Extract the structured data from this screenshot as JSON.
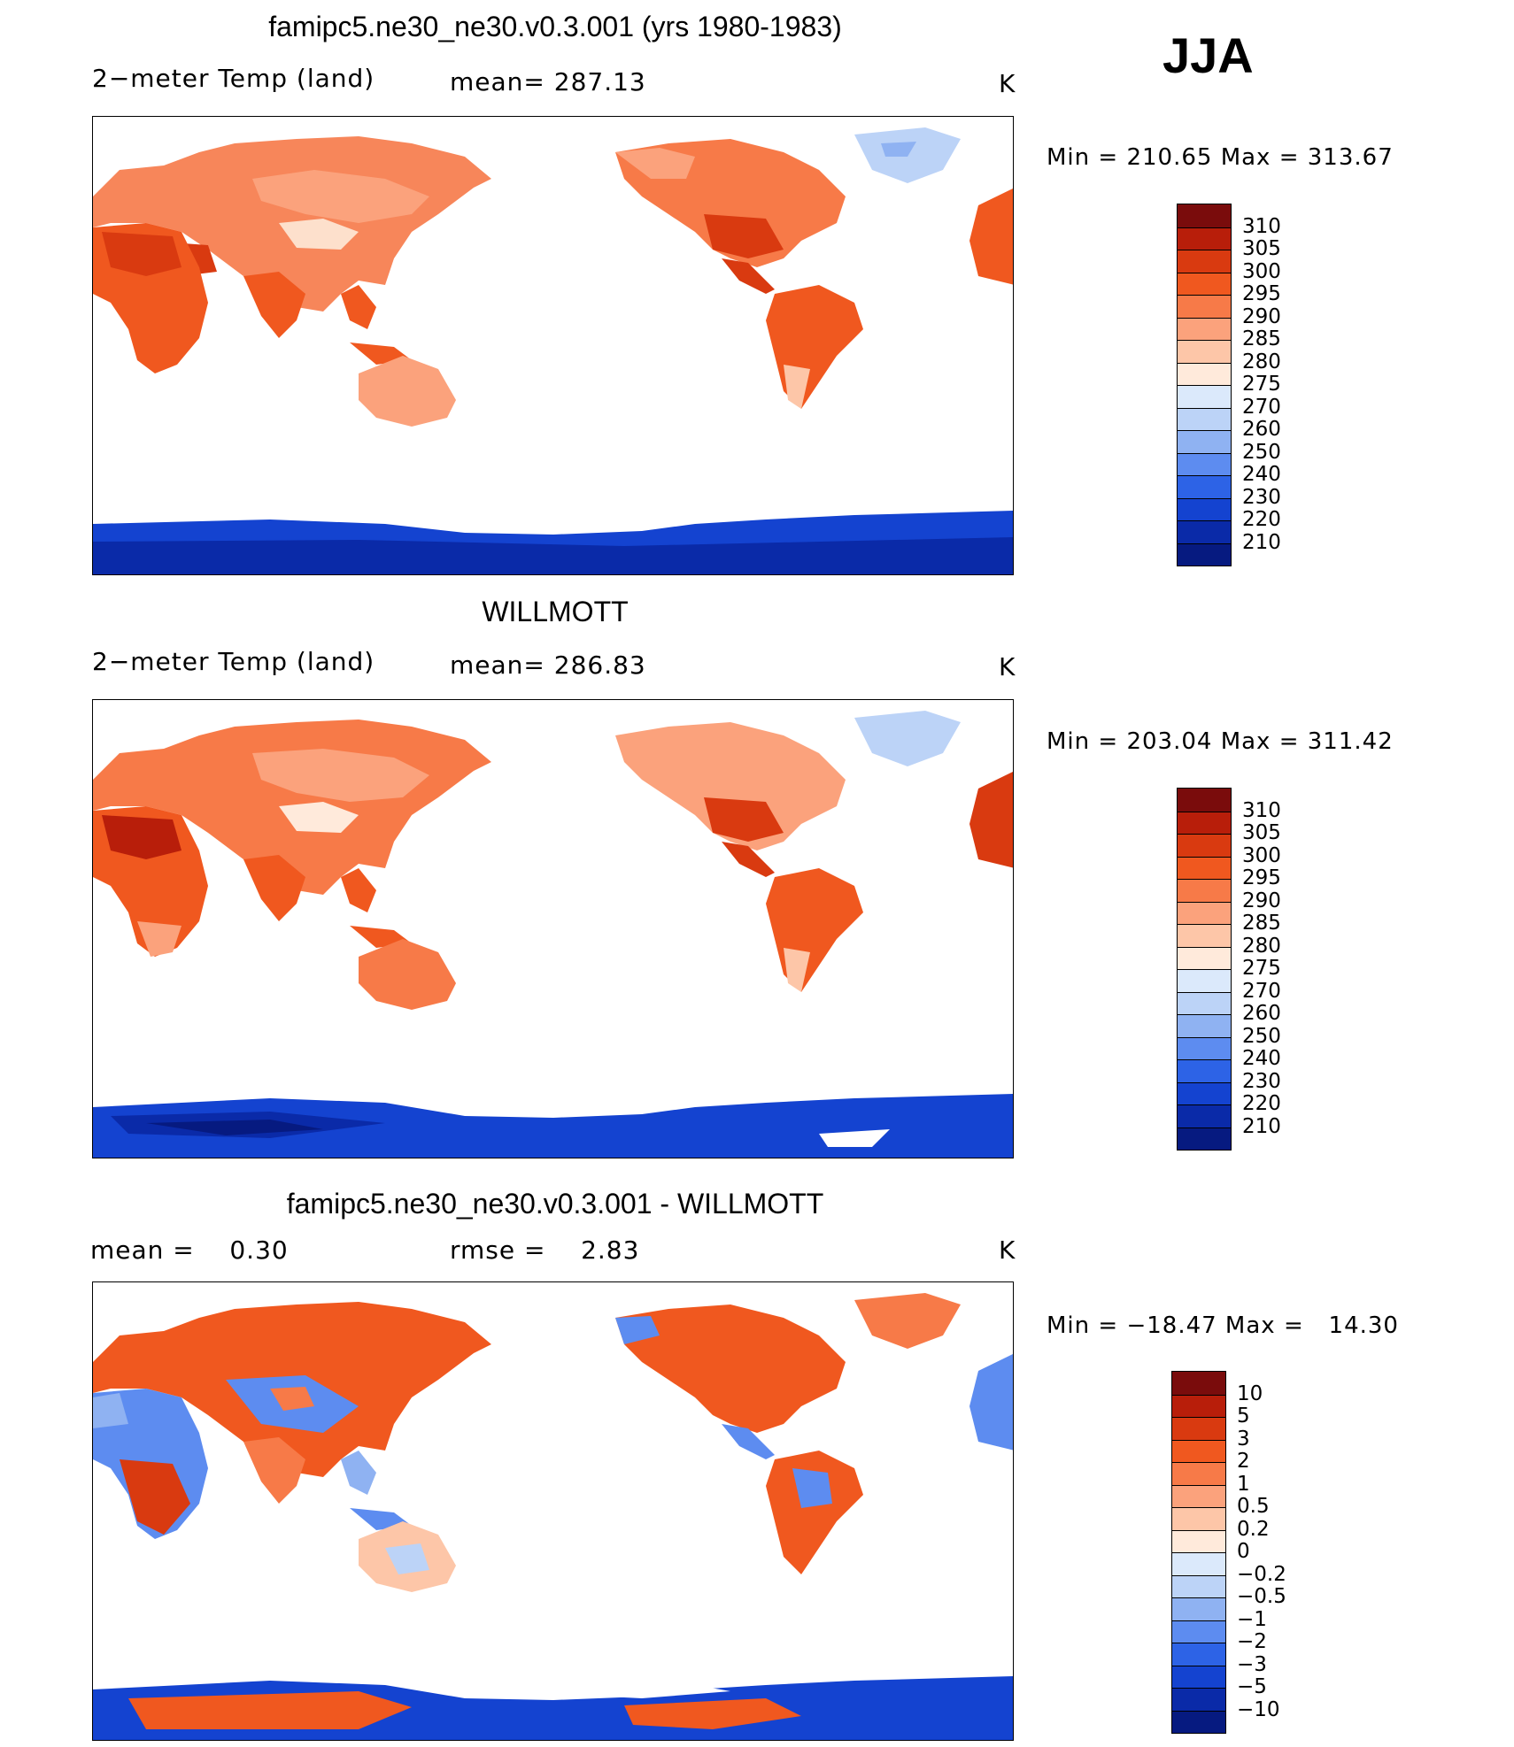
{
  "season": "JJA",
  "panels": [
    {
      "id": "model",
      "title": "famipc5.ne30_ne30.v0.3.001 (yrs 1980-1983)",
      "left_label": "2−meter Temp (land)",
      "center_label": "mean= 287.13",
      "units": "K",
      "minmax": "Min = 210.65 Max = 313.67",
      "colorbar": {
        "labels": [
          "310",
          "305",
          "300",
          "295",
          "290",
          "285",
          "280",
          "275",
          "270",
          "260",
          "250",
          "240",
          "230",
          "220",
          "210"
        ],
        "colors": [
          "#7a0c0c",
          "#b81e0a",
          "#d93a10",
          "#f0581f",
          "#f77a48",
          "#fba27c",
          "#fdc6a8",
          "#ffeadb",
          "#dbe9fb",
          "#bcd3f7",
          "#8fb2f2",
          "#5d8cf0",
          "#2d63e6",
          "#1443d0",
          "#0a2aa8",
          "#061a80"
        ]
      }
    },
    {
      "id": "obs",
      "title": "WILLMOTT",
      "left_label": "2−meter Temp (land)",
      "center_label": "mean= 286.83",
      "units": "K",
      "minmax": "Min = 203.04 Max = 311.42",
      "colorbar": {
        "labels": [
          "310",
          "305",
          "300",
          "295",
          "290",
          "285",
          "280",
          "275",
          "270",
          "260",
          "250",
          "240",
          "230",
          "220",
          "210"
        ],
        "colors": [
          "#7a0c0c",
          "#b81e0a",
          "#d93a10",
          "#f0581f",
          "#f77a48",
          "#fba27c",
          "#fdc6a8",
          "#ffeadb",
          "#dbe9fb",
          "#bcd3f7",
          "#8fb2f2",
          "#5d8cf0",
          "#2d63e6",
          "#1443d0",
          "#0a2aa8",
          "#061a80"
        ]
      }
    },
    {
      "id": "diff",
      "title": "famipc5.ne30_ne30.v0.3.001 - WILLMOTT",
      "left_label": "mean =    0.30",
      "center_label": "rmse =    2.83",
      "units": "K",
      "minmax": "Min = −18.47 Max =   14.30",
      "colorbar": {
        "labels": [
          "10",
          "5",
          "3",
          "2",
          "1",
          "0.5",
          "0.2",
          "0",
          "−0.2",
          "−0.5",
          "−1",
          "−2",
          "−3",
          "−5",
          "−10"
        ],
        "colors": [
          "#7a0c0c",
          "#b81e0a",
          "#d93a10",
          "#f0581f",
          "#f77a48",
          "#fba27c",
          "#fdc6a8",
          "#ffeadb",
          "#dbe9fb",
          "#bcd3f7",
          "#8fb2f2",
          "#5d8cf0",
          "#2d63e6",
          "#1443d0",
          "#0a2aa8",
          "#061a80"
        ]
      }
    }
  ]
}
